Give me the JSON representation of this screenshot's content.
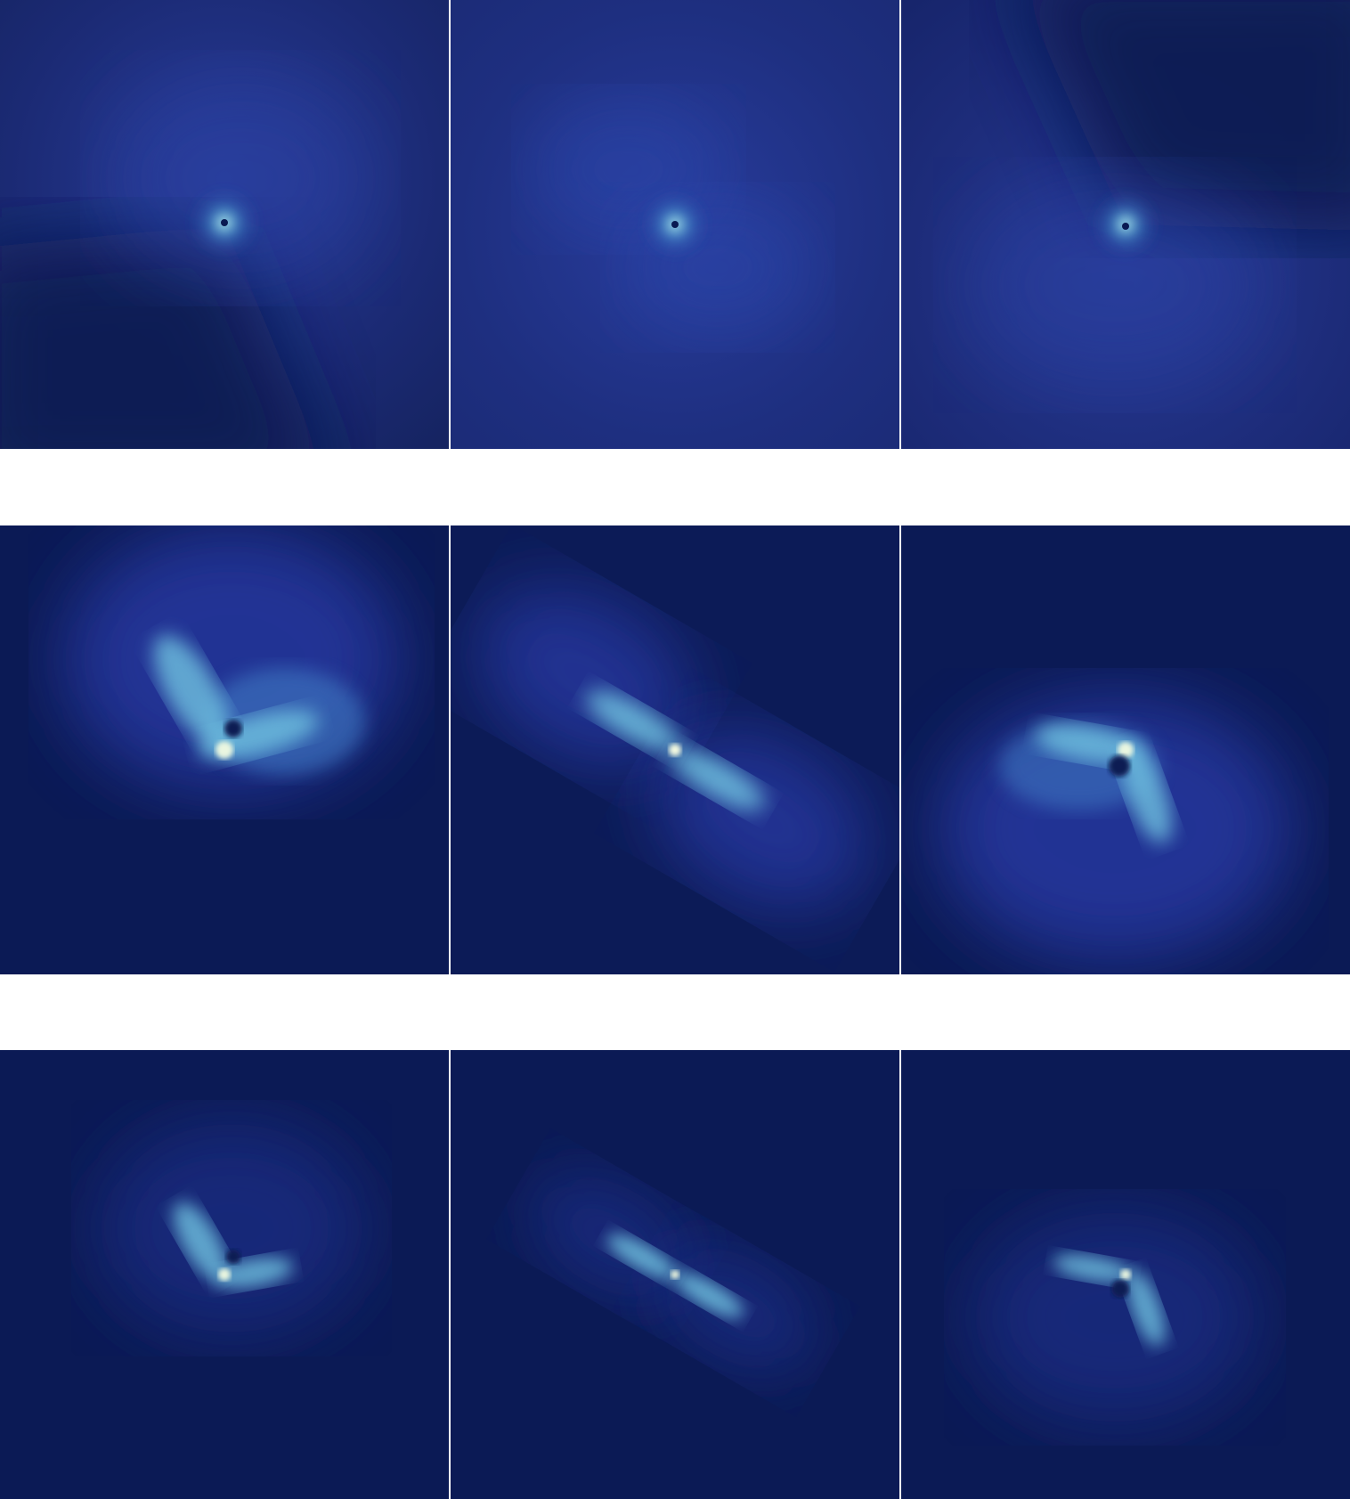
{
  "figure": {
    "colormap": [
      "#0a1a52",
      "#16246a",
      "#22358e",
      "#2a4fa8",
      "#3f86c8",
      "#6fc2e0",
      "#ffffe0"
    ],
    "background_color": "#ffffff",
    "rows": 3,
    "columns": 3,
    "panels": [
      {
        "row": 1,
        "col": 1,
        "pattern": "single-lobe-swirl"
      },
      {
        "row": 1,
        "col": 2,
        "pattern": "two-lobe-swirl"
      },
      {
        "row": 1,
        "col": 3,
        "pattern": "single-lobe-swirl"
      },
      {
        "row": 2,
        "col": 1,
        "pattern": "dipole-lobes"
      },
      {
        "row": 2,
        "col": 2,
        "pattern": "dipole-lobes"
      },
      {
        "row": 2,
        "col": 3,
        "pattern": "dipole-lobes"
      },
      {
        "row": 3,
        "col": 1,
        "pattern": "dipole-lobes"
      },
      {
        "row": 3,
        "col": 2,
        "pattern": "dipole-lobes"
      },
      {
        "row": 3,
        "col": 3,
        "pattern": "dipole-lobes"
      }
    ]
  }
}
